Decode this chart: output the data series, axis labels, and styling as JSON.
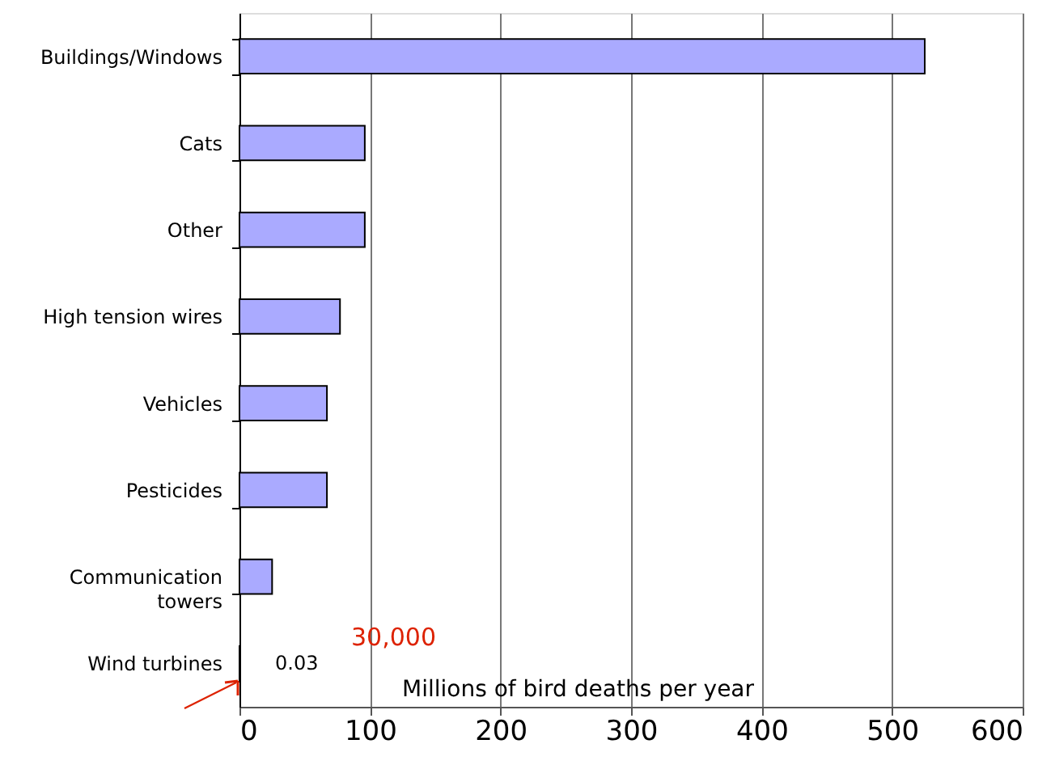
{
  "chart_data": {
    "type": "bar",
    "orientation": "horizontal",
    "categories": [
      "Buildings/Windows",
      "Cats",
      "Other",
      "High tension wires",
      "Vehicles",
      "Pesticides",
      "Communication\ntowers",
      "Wind turbines"
    ],
    "values": [
      525,
      96,
      96,
      77,
      67,
      67,
      25,
      0.03
    ],
    "value_labels": [
      null,
      null,
      null,
      null,
      null,
      null,
      null,
      "0.03"
    ],
    "color": "#aaaaff",
    "xlim": [
      0,
      600
    ],
    "xticks": [
      0,
      100,
      200,
      300,
      400,
      500,
      600
    ],
    "xlabel": "Millions of bird deaths per year",
    "grid": "x",
    "annotations": [
      "30,000"
    ]
  }
}
